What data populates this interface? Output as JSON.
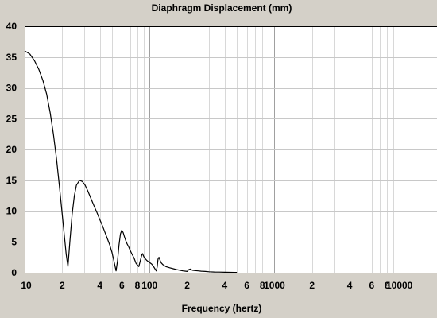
{
  "chart_data": {
    "type": "line",
    "title": "Diaphragm Displacement (mm)",
    "xlabel": "Frequency (hertz)",
    "ylabel": "",
    "xscale": "log",
    "xlim": [
      10,
      20000
    ],
    "ylim": [
      0,
      40
    ],
    "grid": true,
    "x_tick_labels": [
      {
        "value": 10,
        "label": "10"
      },
      {
        "value": 20,
        "label": "2"
      },
      {
        "value": 40,
        "label": "4"
      },
      {
        "value": 60,
        "label": "6"
      },
      {
        "value": 80,
        "label": "8"
      },
      {
        "value": 100,
        "label": "100"
      },
      {
        "value": 200,
        "label": "2"
      },
      {
        "value": 400,
        "label": "4"
      },
      {
        "value": 600,
        "label": "6"
      },
      {
        "value": 800,
        "label": "8"
      },
      {
        "value": 1000,
        "label": "1000"
      },
      {
        "value": 2000,
        "label": "2"
      },
      {
        "value": 4000,
        "label": "4"
      },
      {
        "value": 6000,
        "label": "6"
      },
      {
        "value": 8000,
        "label": "8"
      },
      {
        "value": 10000,
        "label": "10000"
      }
    ],
    "y_tick_labels": [
      "0",
      "5",
      "10",
      "15",
      "20",
      "25",
      "30",
      "35",
      "40"
    ],
    "series": [
      {
        "color": "#000000",
        "x": [
          10,
          11,
          12,
          13,
          14,
          15,
          16,
          17,
          18,
          19,
          20,
          20.8,
          21.5,
          22.2,
          23,
          24,
          25,
          26,
          27.5,
          29,
          30.5,
          32,
          34,
          36,
          38,
          40,
          42,
          44,
          46,
          48,
          50,
          52,
          54,
          55.5,
          57,
          58.5,
          60,
          61.5,
          63,
          64.5,
          66,
          68,
          70,
          72,
          75,
          78,
          82,
          85,
          87,
          88,
          89,
          91,
          93,
          95,
          98,
          101,
          104,
          107,
          110,
          113,
          115,
          117,
          119,
          121,
          124,
          128,
          135,
          145,
          155,
          165,
          175,
          185,
          195,
          200,
          206,
          212,
          220,
          230,
          245,
          260,
          280,
          300,
          330,
          360,
          400,
          440,
          480,
          500
        ],
        "y": [
          36.0,
          35.5,
          34.4,
          33.0,
          31.2,
          29.0,
          26.0,
          22.5,
          18.5,
          14.0,
          9.5,
          6.0,
          3.0,
          1.0,
          5.0,
          9.5,
          12.5,
          14.2,
          15.0,
          14.8,
          14.2,
          13.3,
          12.0,
          10.8,
          9.7,
          8.6,
          7.6,
          6.5,
          5.5,
          4.5,
          3.3,
          1.8,
          0.3,
          2.0,
          4.5,
          6.3,
          6.9,
          6.5,
          5.8,
          5.2,
          4.7,
          4.2,
          3.6,
          3.1,
          2.4,
          1.5,
          1.0,
          2.2,
          3.0,
          3.1,
          2.8,
          2.4,
          2.2,
          2.0,
          1.8,
          1.6,
          1.4,
          1.1,
          0.7,
          0.3,
          0.9,
          2.2,
          2.5,
          2.1,
          1.6,
          1.3,
          1.0,
          0.8,
          0.65,
          0.5,
          0.4,
          0.3,
          0.25,
          0.2,
          0.5,
          0.6,
          0.4,
          0.35,
          0.3,
          0.25,
          0.2,
          0.15,
          0.12,
          0.1,
          0.08,
          0.06,
          0.05,
          0.05
        ]
      }
    ]
  }
}
